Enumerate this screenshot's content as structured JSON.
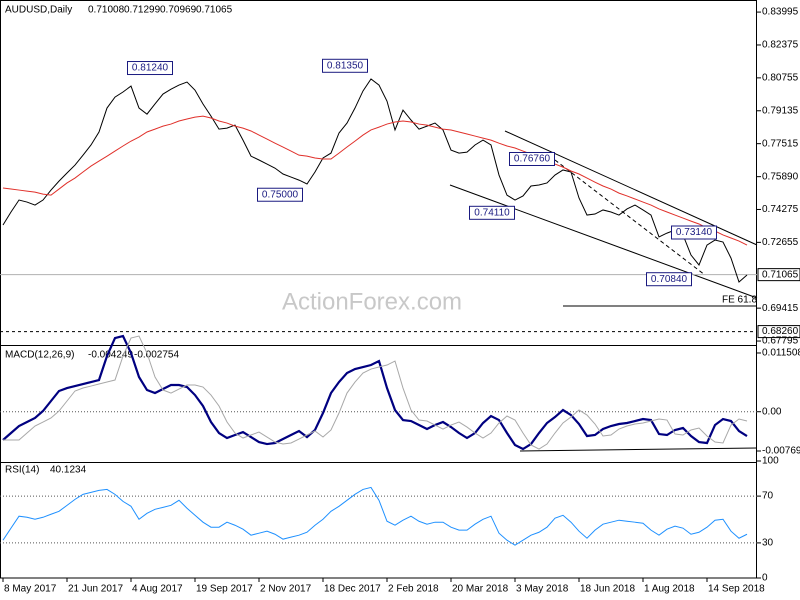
{
  "chart_data": [
    {
      "type": "line",
      "title": "AUDUSD,Daily",
      "ohlc": [
        0.71008,
        0.71299,
        0.70969,
        0.71065
      ],
      "watermark": "ActionForex.com",
      "series": [
        {
          "color": "#000000",
          "values": [
            0.7351,
            0.7415,
            0.7474,
            0.7464,
            0.7449,
            0.7474,
            0.7523,
            0.7567,
            0.7607,
            0.7646,
            0.7695,
            0.7745,
            0.7809,
            0.7927,
            0.7981,
            0.8006,
            0.8035,
            0.7927,
            0.7897,
            0.7947,
            0.7996,
            0.802,
            0.804,
            0.8055,
            0.8015,
            0.7947,
            0.7887,
            0.7823,
            0.7828,
            0.7843,
            0.7769,
            0.769,
            0.7671,
            0.7651,
            0.7631,
            0.7602,
            0.7587,
            0.7572,
            0.7553,
            0.7612,
            0.7681,
            0.7705,
            0.7804,
            0.7853,
            0.7927,
            0.8011,
            0.807,
            0.804,
            0.7961,
            0.7819,
            0.7917,
            0.7868,
            0.7823,
            0.7838,
            0.7853,
            0.7819,
            0.772,
            0.7705,
            0.771,
            0.7745,
            0.7769,
            0.7745,
            0.7597,
            0.7498,
            0.7474,
            0.7494,
            0.7543,
            0.7548,
            0.7558,
            0.7597,
            0.7622,
            0.7612,
            0.7484,
            0.74,
            0.7405,
            0.7425,
            0.7415,
            0.74,
            0.743,
            0.7449,
            0.7425,
            0.74,
            0.7292,
            0.7311,
            0.7326,
            0.7302,
            0.7203,
            0.7154,
            0.7252,
            0.7277,
            0.7267,
            0.7188,
            0.707,
            0.7105
          ]
        },
        {
          "color": "#e0302a",
          "values": [
            0.7533,
            0.7528,
            0.7523,
            0.7518,
            0.7513,
            0.7503,
            0.7498,
            0.7528,
            0.7558,
            0.7582,
            0.7612,
            0.7641,
            0.7666,
            0.769,
            0.7715,
            0.774,
            0.7764,
            0.7784,
            0.7809,
            0.7823,
            0.7838,
            0.7848,
            0.7863,
            0.7873,
            0.7882,
            0.7887,
            0.7878,
            0.7863,
            0.7853,
            0.7838,
            0.7828,
            0.7814,
            0.7794,
            0.7774,
            0.7754,
            0.7735,
            0.7715,
            0.7695,
            0.769,
            0.7681,
            0.7676,
            0.7676,
            0.7705,
            0.7735,
            0.7764,
            0.7794,
            0.7819,
            0.7833,
            0.7848,
            0.7858,
            0.7863,
            0.7858,
            0.7848,
            0.7843,
            0.7833,
            0.7823,
            0.7819,
            0.7809,
            0.7799,
            0.7789,
            0.7779,
            0.7769,
            0.7754,
            0.774,
            0.773,
            0.7715,
            0.77,
            0.7681,
            0.7666,
            0.7651,
            0.7636,
            0.7617,
            0.7602,
            0.7582,
            0.7562,
            0.7543,
            0.7528,
            0.7508,
            0.7494,
            0.7479,
            0.7464,
            0.7449,
            0.743,
            0.7415,
            0.74,
            0.7385,
            0.737,
            0.7356,
            0.7336,
            0.7321,
            0.7302,
            0.7287,
            0.7272,
            0.7252
          ]
        }
      ],
      "ylim": [
        0.676,
        0.8459
      ],
      "yticks": [
        0.83995,
        0.82375,
        0.80755,
        0.79135,
        0.77515,
        {
          "value": 0.7589,
          "label": "0.75890"
        },
        0.74275,
        0.72655,
        0.69415,
        0.67795
      ],
      "current_price": 0.71065,
      "level": {
        "value": 0.6826,
        "label": "0.68260"
      },
      "fe_level": {
        "value": 0.6952,
        "label": "FE 61.8"
      },
      "annotations": [
        {
          "value": 0.8124,
          "label": "0.81240"
        },
        {
          "value": 0.8135,
          "label": "0.81350"
        },
        {
          "value": 0.75,
          "label": "0.75000"
        },
        {
          "value": 0.7676,
          "label": "0.76760"
        },
        {
          "value": 0.7411,
          "label": "0.74110"
        },
        {
          "value": 0.7314,
          "label": "0.73140"
        },
        {
          "value": 0.7084,
          "label": "0.70840"
        }
      ]
    },
    {
      "type": "line",
      "title": "MACD(12,26,9)",
      "readings": [
        -0.004249,
        -0.002754
      ],
      "series": [
        {
          "color": "#000080",
          "values": [
            -0.00554,
            -0.00417,
            -0.0028,
            -0.00202,
            -0.00123,
            0.00014,
            0.0021,
            0.00406,
            0.00464,
            0.00503,
            0.00543,
            0.00582,
            0.00621,
            0.01091,
            0.01444,
            0.01483,
            0.0115,
            0.0068,
            0.00425,
            0.00366,
            0.00445,
            0.00523,
            0.00523,
            0.00484,
            0.00327,
            0.00112,
            -0.00202,
            -0.00417,
            -0.00515,
            -0.00456,
            -0.00398,
            -0.00496,
            -0.00594,
            -0.00633,
            -0.00613,
            -0.00535,
            -0.00456,
            -0.00378,
            -0.00496,
            -0.00358,
            -0.00025,
            0.00366,
            0.00582,
            0.00758,
            0.00836,
            0.00876,
            0.00915,
            0.00993,
            0.00464,
            0.00033,
            -0.00163,
            -0.00182,
            -0.00261,
            -0.00339,
            -0.00261,
            -0.00202,
            -0.003,
            -0.00417,
            -0.00515,
            -0.00417,
            -0.00221,
            -0.00084,
            -0.00163,
            -0.00417,
            -0.00652,
            -0.00731,
            -0.00633,
            -0.00417,
            -0.00221,
            -0.00104,
            0.00033,
            -0.00065,
            -0.00241,
            -0.00476,
            -0.00456,
            -0.00339,
            -0.0028,
            -0.00241,
            -0.00221,
            -0.00182,
            -0.00143,
            -0.00163,
            -0.00437,
            -0.00456,
            -0.00358,
            -0.00319,
            -0.00476,
            -0.00594,
            -0.00613,
            -0.00261,
            -0.00143,
            -0.00182,
            -0.00378,
            -0.00476
          ]
        },
        {
          "color": "#a8a8a8",
          "values": [
            -0.00554,
            -0.00554,
            -0.00554,
            -0.00417,
            -0.0028,
            -0.00202,
            -0.00123,
            0.00014,
            0.0021,
            0.00406,
            0.00464,
            0.00503,
            0.00543,
            0.00582,
            0.00621,
            0.01091,
            0.01444,
            0.01483,
            0.0115,
            0.0068,
            0.00425,
            0.00366,
            0.00445,
            0.00523,
            0.00523,
            0.00484,
            0.00327,
            0.00112,
            -0.00202,
            -0.00417,
            -0.00515,
            -0.00456,
            -0.00398,
            -0.00496,
            -0.00594,
            -0.00633,
            -0.00613,
            -0.00535,
            -0.00456,
            -0.00378,
            -0.00496,
            -0.00358,
            -0.00025,
            0.00366,
            0.00582,
            0.00758,
            0.00836,
            0.00876,
            0.00915,
            0.00993,
            0.00464,
            0.00033,
            -0.00163,
            -0.00182,
            -0.00261,
            -0.00339,
            -0.00261,
            -0.00202,
            -0.003,
            -0.00417,
            -0.00515,
            -0.00417,
            -0.00221,
            -0.00084,
            -0.00163,
            -0.00417,
            -0.00652,
            -0.00731,
            -0.00633,
            -0.00417,
            -0.00221,
            -0.00104,
            0.00033,
            -0.00065,
            -0.00241,
            -0.00476,
            -0.00456,
            -0.00339,
            -0.0028,
            -0.00241,
            -0.00221,
            -0.00182,
            -0.00143,
            -0.00163,
            -0.00437,
            -0.00456,
            -0.00358,
            -0.00319,
            -0.00476,
            -0.00594,
            -0.00613,
            -0.00261,
            -0.00143,
            -0.00182
          ]
        }
      ],
      "ylim": [
        -0.00985,
        0.01268
      ],
      "yticks": [
        0.011508,
        {
          "value": 0,
          "label": "0.00"
        },
        -0.007694
      ],
      "reference_lines": [
        0
      ]
    },
    {
      "type": "line",
      "title": "RSI(14)",
      "readings": [
        40.1234
      ],
      "categories": [
        "8 May 2017",
        null,
        null,
        null,
        null,
        null,
        null,
        null,
        "21 Jun 2017",
        null,
        null,
        null,
        null,
        null,
        null,
        null,
        "4 Aug 2017",
        null,
        null,
        null,
        null,
        null,
        null,
        null,
        "19 Sep 2017",
        null,
        null,
        null,
        null,
        null,
        null,
        null,
        "2 Nov 2017",
        null,
        null,
        null,
        null,
        null,
        null,
        null,
        "18 Dec 2017",
        null,
        null,
        null,
        null,
        null,
        null,
        null,
        "2 Feb 2018",
        null,
        null,
        null,
        null,
        null,
        null,
        null,
        "20 Mar 2018",
        null,
        null,
        null,
        null,
        null,
        null,
        null,
        "3 May 2018",
        null,
        null,
        null,
        null,
        null,
        null,
        null,
        "18 Jun 2018",
        null,
        null,
        null,
        null,
        null,
        null,
        null,
        "1 Aug 2018",
        null,
        null,
        null,
        null,
        null,
        null,
        null,
        "14 Sep 2018",
        null,
        null,
        null,
        null,
        null
      ],
      "series": [
        {
          "color": "#1e90ff",
          "values": [
            32.3,
            42.6,
            52.8,
            51.9,
            50.2,
            51.9,
            54.5,
            57.0,
            62.1,
            67.2,
            71.5,
            73.2,
            74.9,
            75.7,
            71.5,
            65.5,
            61.3,
            50.2,
            55.3,
            58.7,
            60.4,
            62.1,
            66.4,
            59.6,
            53.6,
            47.7,
            43.4,
            43.4,
            47.7,
            45.1,
            41.7,
            36.6,
            38.3,
            40.0,
            37.4,
            33.2,
            34.9,
            36.6,
            39.1,
            45.1,
            50.2,
            57.0,
            61.3,
            66.4,
            71.5,
            75.7,
            77.4,
            66.4,
            48.5,
            45.1,
            49.4,
            52.8,
            48.5,
            46.0,
            47.7,
            47.7,
            43.4,
            40.9,
            40.9,
            46.0,
            50.2,
            52.8,
            38.3,
            32.3,
            28.1,
            32.3,
            36.6,
            39.1,
            43.4,
            51.1,
            53.6,
            47.7,
            40.0,
            34.0,
            40.9,
            46.0,
            47.7,
            49.4,
            48.5,
            47.7,
            46.8,
            40.9,
            36.6,
            41.7,
            44.3,
            42.6,
            37.4,
            39.1,
            43.4,
            49.4,
            50.2,
            40.0,
            34.0,
            37.4
          ]
        }
      ],
      "ylim": [
        0,
        100
      ],
      "yticks": [
        100,
        70,
        30,
        0
      ],
      "reference_lines": [
        70,
        30
      ]
    }
  ]
}
